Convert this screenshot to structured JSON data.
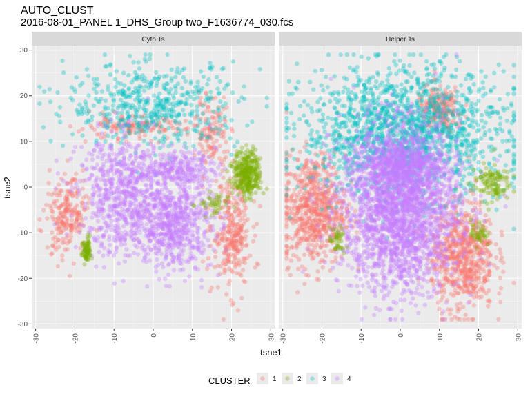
{
  "chart_data": {
    "type": "scatter",
    "title": "AUTO_CLUST",
    "subtitle": "2016-08-01_PANEL 1_DHS_Group two_F1636774_030.fcs",
    "xlabel": "tsne1",
    "ylabel": "tsne2",
    "xlim": [
      -31,
      31
    ],
    "ylim": [
      -31,
      31
    ],
    "x_ticks": [
      -30,
      -20,
      -10,
      0,
      10,
      20,
      30
    ],
    "y_ticks": [
      -30,
      -20,
      -10,
      0,
      10,
      20,
      30
    ],
    "facets": [
      "Cyto Ts",
      "Helper Ts"
    ],
    "legend_title": "CLUSTER",
    "legend_position": "bottom",
    "grid": true,
    "colors": {
      "1": "#F8766D",
      "2": "#7CAE00",
      "3": "#00BFC4",
      "4": "#C77CFF"
    },
    "series": [
      {
        "name": "1",
        "color": "#F8766D"
      },
      {
        "name": "2",
        "color": "#7CAE00"
      },
      {
        "name": "3",
        "color": "#00BFC4"
      },
      {
        "name": "4",
        "color": "#C77CFF"
      }
    ],
    "clusters": {
      "Cyto Ts": [
        {
          "cluster": "3",
          "cx": 0,
          "cy": 18,
          "rx": 22,
          "ry": 9,
          "n": 520
        },
        {
          "cluster": "1",
          "cx": -22,
          "cy": -6,
          "rx": 5,
          "ry": 9,
          "n": 220
        },
        {
          "cluster": "1",
          "cx": 20,
          "cy": -10,
          "rx": 5,
          "ry": 12,
          "n": 300
        },
        {
          "cluster": "1",
          "cx": 15,
          "cy": 12,
          "rx": 4,
          "ry": 8,
          "n": 120
        },
        {
          "cluster": "1",
          "cx": -6,
          "cy": 13,
          "rx": 14,
          "ry": 2.5,
          "n": 140
        },
        {
          "cluster": "4",
          "cx": -8,
          "cy": -2,
          "rx": 11,
          "ry": 13,
          "n": 650
        },
        {
          "cluster": "4",
          "cx": 5,
          "cy": -8,
          "rx": 10,
          "ry": 10,
          "n": 650
        },
        {
          "cluster": "4",
          "cx": 6,
          "cy": 4,
          "rx": 10,
          "ry": 4,
          "n": 260
        },
        {
          "cluster": "2",
          "cx": 24,
          "cy": 3,
          "rx": 3.5,
          "ry": 5,
          "n": 320
        },
        {
          "cluster": "2",
          "cx": -17,
          "cy": -14,
          "rx": 1.2,
          "ry": 3,
          "n": 70
        },
        {
          "cluster": "2",
          "cx": 15,
          "cy": -4,
          "rx": 4,
          "ry": 3,
          "n": 40
        }
      ],
      "Helper Ts": [
        {
          "cluster": "3",
          "cx": 1,
          "cy": 12,
          "rx": 26,
          "ry": 14,
          "n": 1600
        },
        {
          "cluster": "1",
          "cx": -22,
          "cy": -5,
          "rx": 8,
          "ry": 12,
          "n": 650
        },
        {
          "cluster": "1",
          "cx": 16,
          "cy": -15,
          "rx": 8,
          "ry": 12,
          "n": 650
        },
        {
          "cluster": "1",
          "cx": 10,
          "cy": 17,
          "rx": 6,
          "ry": 5,
          "n": 200
        },
        {
          "cluster": "4",
          "cx": 0,
          "cy": -5,
          "rx": 15,
          "ry": 18,
          "n": 2300
        },
        {
          "cluster": "4",
          "cx": 0,
          "cy": 5,
          "rx": 11,
          "ry": 6,
          "n": 500
        },
        {
          "cluster": "2",
          "cx": 23,
          "cy": 1,
          "rx": 5,
          "ry": 4,
          "n": 110
        },
        {
          "cluster": "2",
          "cx": -16,
          "cy": -12,
          "rx": 2,
          "ry": 3,
          "n": 40
        },
        {
          "cluster": "2",
          "cx": 20,
          "cy": -10,
          "rx": 2,
          "ry": 3,
          "n": 40
        }
      ]
    }
  }
}
